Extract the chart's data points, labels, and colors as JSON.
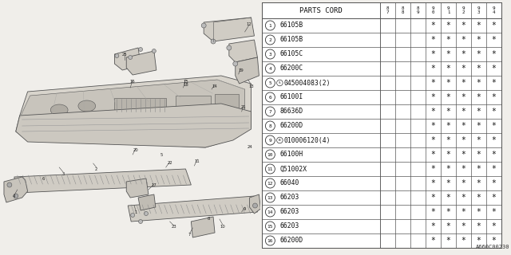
{
  "diagram_code": "A660C00230",
  "bg_color": "#f0eeea",
  "table_bg": "#ffffff",
  "line_color": "#555555",
  "table_header": "PARTS CORD",
  "year_cols": [
    "8\n7",
    "8\n8",
    "8\n9",
    "9\n0",
    "9\n1",
    "9\n2",
    "9\n3",
    "9\n4"
  ],
  "rows": [
    {
      "num": "1",
      "part": "66105B",
      "special": "",
      "stars": [
        0,
        0,
        0,
        1,
        1,
        1,
        1,
        1
      ]
    },
    {
      "num": "2",
      "part": "66105B",
      "special": "",
      "stars": [
        0,
        0,
        0,
        1,
        1,
        1,
        1,
        1
      ]
    },
    {
      "num": "3",
      "part": "66105C",
      "special": "",
      "stars": [
        0,
        0,
        0,
        1,
        1,
        1,
        1,
        1
      ]
    },
    {
      "num": "4",
      "part": "66200C",
      "special": "",
      "stars": [
        0,
        0,
        0,
        1,
        1,
        1,
        1,
        1
      ]
    },
    {
      "num": "5",
      "part": "045004083(2)",
      "special": "S",
      "stars": [
        0,
        0,
        0,
        1,
        1,
        1,
        1,
        1
      ]
    },
    {
      "num": "6",
      "part": "66100I",
      "special": "",
      "stars": [
        0,
        0,
        0,
        1,
        1,
        1,
        1,
        1
      ]
    },
    {
      "num": "7",
      "part": "86636D",
      "special": "",
      "stars": [
        0,
        0,
        0,
        1,
        1,
        1,
        1,
        1
      ]
    },
    {
      "num": "8",
      "part": "66200D",
      "special": "",
      "stars": [
        0,
        0,
        0,
        1,
        1,
        1,
        1,
        1
      ]
    },
    {
      "num": "9",
      "part": "010006120(4)",
      "special": "B",
      "stars": [
        0,
        0,
        0,
        1,
        1,
        1,
        1,
        1
      ]
    },
    {
      "num": "10",
      "part": "66100H",
      "special": "",
      "stars": [
        0,
        0,
        0,
        1,
        1,
        1,
        1,
        1
      ]
    },
    {
      "num": "11",
      "part": "Q51002X",
      "special": "",
      "stars": [
        0,
        0,
        0,
        1,
        1,
        1,
        1,
        1
      ]
    },
    {
      "num": "12",
      "part": "66040",
      "special": "",
      "stars": [
        0,
        0,
        0,
        1,
        1,
        1,
        1,
        1
      ]
    },
    {
      "num": "13",
      "part": "66203",
      "special": "",
      "stars": [
        0,
        0,
        0,
        1,
        1,
        1,
        1,
        1
      ]
    },
    {
      "num": "14",
      "part": "66203",
      "special": "",
      "stars": [
        0,
        0,
        0,
        1,
        1,
        1,
        1,
        1
      ]
    },
    {
      "num": "15",
      "part": "66203",
      "special": "",
      "stars": [
        0,
        0,
        0,
        1,
        1,
        1,
        1,
        1
      ]
    },
    {
      "num": "16",
      "part": "66200D",
      "special": "",
      "stars": [
        0,
        0,
        0,
        1,
        1,
        1,
        1,
        1
      ]
    }
  ]
}
